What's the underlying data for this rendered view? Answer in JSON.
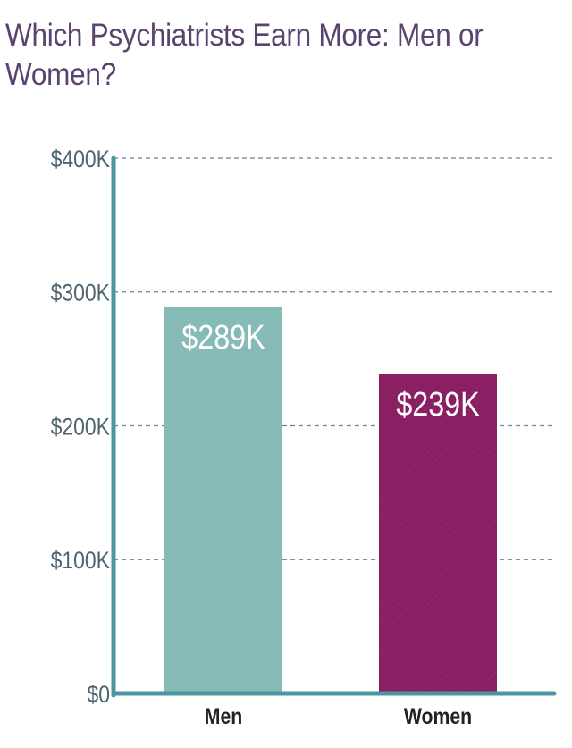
{
  "chart_data": {
    "type": "bar",
    "title": "Which Psychiatrists Earn More: Men or Women?",
    "categories": [
      "Men",
      "Women"
    ],
    "values": [
      289,
      239
    ],
    "data_labels": [
      "$289K",
      "$239K"
    ],
    "colors": [
      "#85bab6",
      "#8b1f63"
    ],
    "ylim": [
      0,
      400
    ],
    "yticks": [
      0,
      100,
      200,
      300,
      400
    ],
    "ytick_labels": [
      "$0",
      "$100K",
      "$200K",
      "$300K",
      "$400K"
    ],
    "grid": "horizontal dashed",
    "axis_color": "#4a97a0",
    "xlabel": "",
    "ylabel": ""
  }
}
